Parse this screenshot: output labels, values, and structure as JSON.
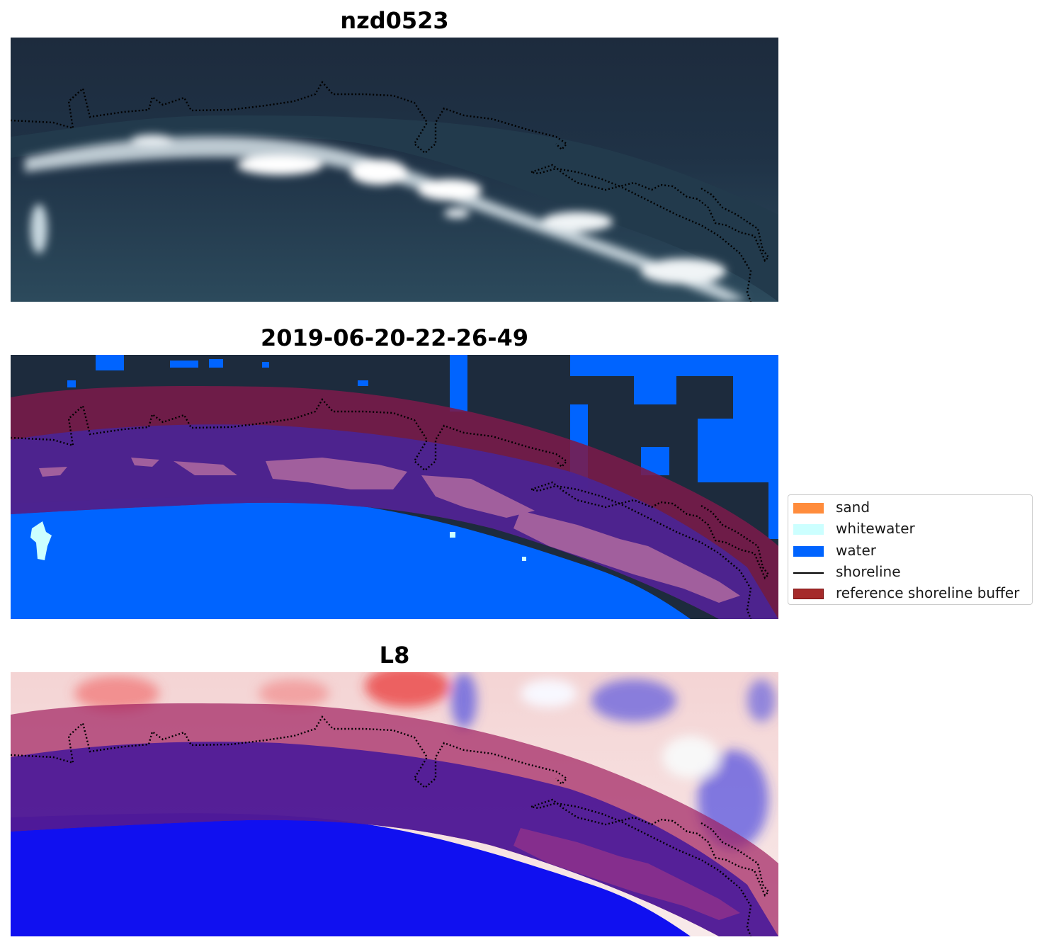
{
  "panels": [
    {
      "title": "nzd0523"
    },
    {
      "title": "2019-06-20-22-26-49"
    },
    {
      "title": "L8"
    }
  ],
  "legend": {
    "items": [
      {
        "label": "sand",
        "color": "#ff8c3c",
        "kind": "patch"
      },
      {
        "label": "whitewater",
        "color": "#ccffff",
        "kind": "patch"
      },
      {
        "label": "water",
        "color": "#0064ff",
        "kind": "patch"
      },
      {
        "label": "shoreline",
        "color": "#000000",
        "kind": "line"
      },
      {
        "label": "reference shoreline buffer",
        "color": "#a52a2a",
        "kind": "patch"
      }
    ]
  },
  "colors": {
    "ocean_dark": "#1d2b3d",
    "ocean_mid": "#2c4a5c",
    "surf": "#e8eef2",
    "water_class": "#0064ff",
    "buffer": "#7a1a4a",
    "buffer_over_water": "#4a2495",
    "whitewater_class": "#ccffff",
    "index_water": "#1010f0",
    "index_land": "#f04040"
  }
}
